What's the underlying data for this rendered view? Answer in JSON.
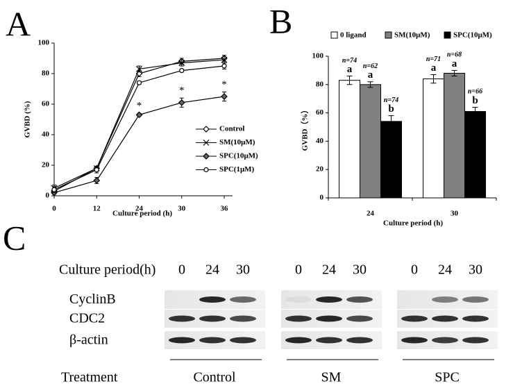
{
  "chart_data": [
    {
      "type": "line",
      "panel_label": "A",
      "x_label": "Culture period (h)",
      "y_label": "GVBD (%)",
      "categories": [
        "0",
        "12",
        "24",
        "30",
        "36"
      ],
      "ylim": [
        0,
        100
      ],
      "yticks": [
        0,
        20,
        40,
        60,
        80,
        100
      ],
      "legend": "lower right",
      "series": [
        {
          "name": "Control",
          "color": "#000000",
          "marker": "diamond-open",
          "values": [
            3,
            18,
            80,
            88,
            90
          ],
          "errors": [
            2,
            1,
            2,
            2,
            2
          ]
        },
        {
          "name": "SM(10μM)",
          "color": "#000000",
          "marker": "x",
          "values": [
            5,
            18,
            83,
            87,
            89
          ],
          "errors": [
            2,
            1,
            2,
            2,
            2
          ]
        },
        {
          "name": "SPC(10μM)",
          "color": "#000000",
          "marker": "diamond",
          "values": [
            2,
            10,
            53,
            61,
            65
          ],
          "errors": [
            2,
            2,
            1,
            3,
            3
          ]
        },
        {
          "name": "SPC(1μM)",
          "color": "#000000",
          "marker": "circle-open",
          "values": [
            4,
            17,
            74,
            82,
            85
          ],
          "errors": [
            2,
            2,
            1,
            1,
            2
          ]
        }
      ],
      "annotations": [
        {
          "category": "24",
          "text": "*"
        },
        {
          "category": "30",
          "text": "*"
        },
        {
          "category": "36",
          "text": "*"
        }
      ]
    },
    {
      "type": "bar",
      "panel_label": "B",
      "x_label": "Culture period (h)",
      "y_label": "GVBD（%）",
      "categories": [
        "24",
        "30"
      ],
      "ylim": [
        0,
        100
      ],
      "yticks": [
        0,
        20,
        40,
        60,
        80,
        100
      ],
      "legend": "top",
      "series": [
        {
          "name": "0 ligand",
          "color": "#ffffff",
          "values": [
            83,
            84
          ],
          "errors": [
            3,
            3
          ],
          "n_labels": [
            "n=74",
            "n=71"
          ],
          "letters": [
            "a",
            "a"
          ]
        },
        {
          "name": "SM(10μM)",
          "color": "#808080",
          "values": [
            80,
            88
          ],
          "errors": [
            2,
            2
          ],
          "n_labels": [
            "n=62",
            "n=68"
          ],
          "letters": [
            "a",
            "a"
          ]
        },
        {
          "name": "SPC(10μM)",
          "color": "#000000",
          "values": [
            54,
            61
          ],
          "errors": [
            4,
            3
          ],
          "n_labels": [
            "n=74",
            "n=66"
          ],
          "letters": [
            "b",
            "b"
          ]
        }
      ]
    }
  ],
  "blot": {
    "panel_label": "C",
    "header": "Culture period(h)",
    "times": [
      "0",
      "24",
      "30"
    ],
    "rows": [
      "CyclinB",
      "CDC2",
      "β-actin"
    ],
    "treatment_label": "Treatment",
    "groups": [
      "Control",
      "SM",
      "SPC"
    ]
  }
}
